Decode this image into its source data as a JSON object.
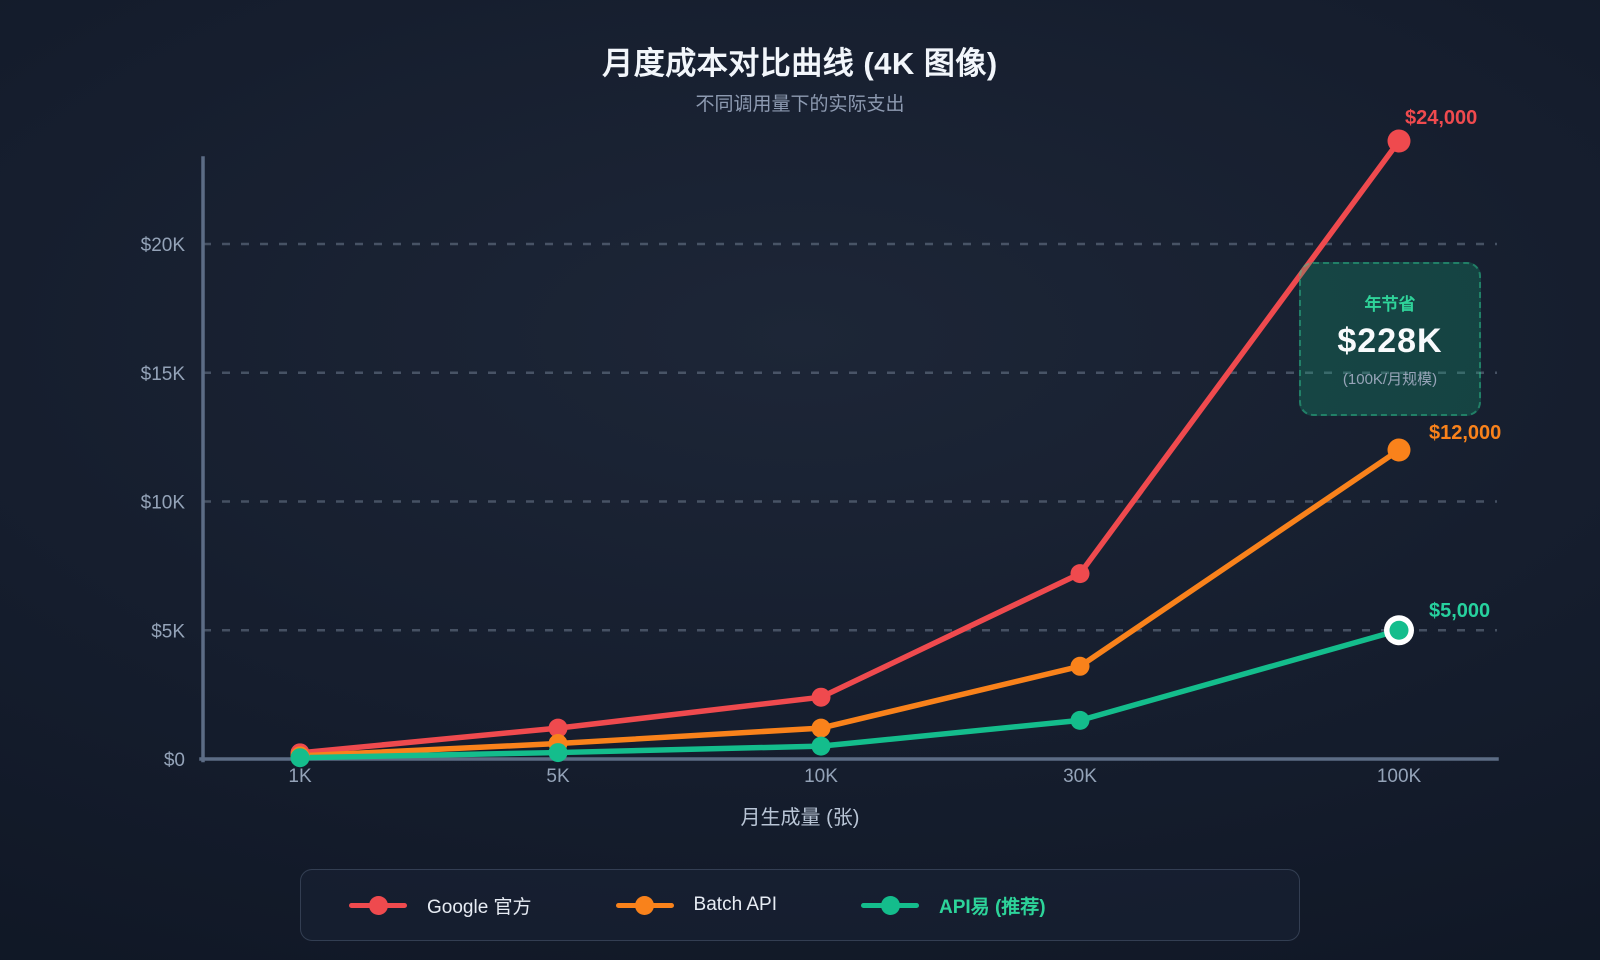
{
  "chart_data": {
    "type": "line",
    "title": "月度成本对比曲线 (4K 图像)",
    "subtitle": "不同调用量下的实际支出",
    "xlabel": "月生成量 (张)",
    "categories": [
      "1K",
      "5K",
      "10K",
      "30K",
      "100K"
    ],
    "y_ticks": [
      {
        "label": "$0",
        "value": 0
      },
      {
        "label": "$5K",
        "value": 5000
      },
      {
        "label": "$10K",
        "value": 10000
      },
      {
        "label": "$15K",
        "value": 15000
      },
      {
        "label": "$20K",
        "value": 20000
      }
    ],
    "ylim": [
      0,
      24000
    ],
    "grid": "horizontal-dashed",
    "legend_position": "bottom",
    "series": [
      {
        "key": "google-official",
        "name": "Google 官方",
        "color": "#ef4a4e",
        "values": [
          240,
          1200,
          2400,
          7200,
          24000
        ],
        "end_label": "$24,000",
        "emphasis": false,
        "endpoint_ring": false
      },
      {
        "key": "batch-api",
        "name": "Batch API",
        "color": "#f9821b",
        "values": [
          120,
          600,
          1200,
          3600,
          12000
        ],
        "end_label": "$12,000",
        "emphasis": false,
        "endpoint_ring": false
      },
      {
        "key": "apiyi-recommended",
        "name": "API易 (推荐)",
        "color": "#14bd8c",
        "values": [
          50,
          250,
          500,
          1500,
          5000
        ],
        "end_label": "$5,000",
        "end_label_color": "#27d19e",
        "legend_text_color": "#2dd49a",
        "emphasis": true,
        "endpoint_ring": true
      }
    ],
    "annotation": {
      "label": "年节省",
      "value": "$228K",
      "note": "(100K/月规模)"
    }
  }
}
